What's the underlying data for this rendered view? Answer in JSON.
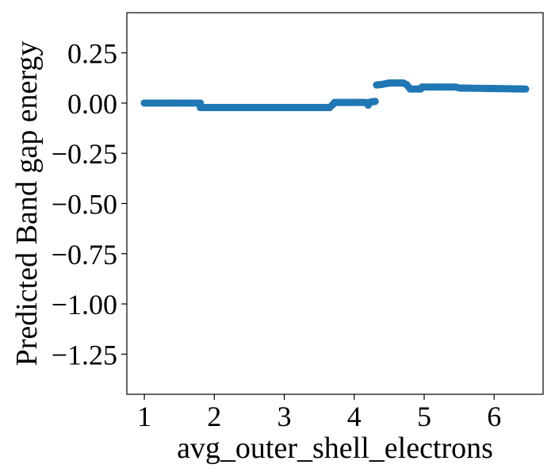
{
  "chart_data": {
    "type": "scatter",
    "title": "",
    "xlabel": "avg_outer_shell_electrons",
    "ylabel": "Predicted Band gap energy",
    "xlim": [
      0.75,
      6.7
    ],
    "ylim": [
      -1.45,
      0.45
    ],
    "xticks": [
      1,
      2,
      3,
      4,
      5,
      6
    ],
    "xtick_labels": [
      "1",
      "2",
      "3",
      "4",
      "5",
      "6"
    ],
    "yticks": [
      0.25,
      0.0,
      -0.25,
      -0.5,
      -0.75,
      -1.0,
      -1.25
    ],
    "ytick_labels": [
      "0.25",
      "0.00",
      "−0.25",
      "−0.50",
      "−0.75",
      "−1.00",
      "−1.25"
    ],
    "grid": false,
    "legend": "none",
    "series": [
      {
        "color": "#1f77b4",
        "points": [
          [
            1.0,
            0.0
          ],
          [
            1.8,
            0.0
          ],
          [
            1.8,
            -0.022
          ],
          [
            3.65,
            -0.022
          ],
          [
            3.68,
            -0.012
          ],
          [
            3.72,
            0.003
          ],
          [
            4.15,
            0.003
          ],
          [
            4.18,
            0.002
          ],
          [
            4.2,
            -0.01
          ],
          [
            4.23,
            0.005
          ],
          [
            4.3,
            0.008
          ],
          [
            4.32,
            0.09
          ],
          [
            4.4,
            0.093
          ],
          [
            4.5,
            0.1
          ],
          [
            4.7,
            0.1
          ],
          [
            4.75,
            0.092
          ],
          [
            4.8,
            0.07
          ],
          [
            4.95,
            0.07
          ],
          [
            4.97,
            0.08
          ],
          [
            5.45,
            0.08
          ],
          [
            5.5,
            0.075
          ],
          [
            6.45,
            0.07
          ]
        ]
      }
    ]
  }
}
